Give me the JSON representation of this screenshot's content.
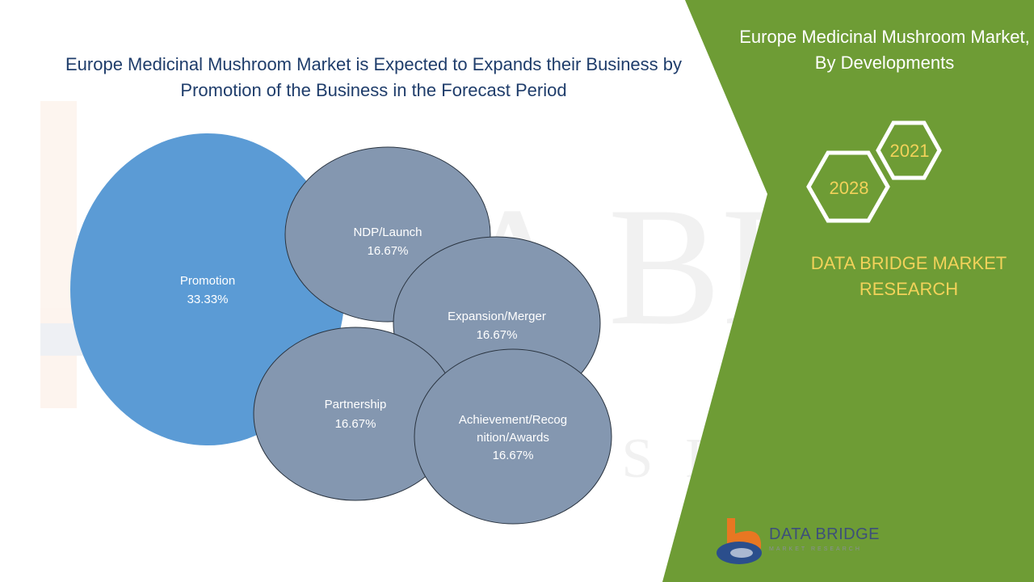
{
  "title": "Europe Medicinal Mushroom Market is Expected to Expands their Business by Promotion of the Business in the Forecast Period",
  "side_panel": {
    "title": "Europe Medicinal Mushroom Market, By Developments",
    "year_start": "2021",
    "year_end": "2028",
    "brand": "DATA BRIDGE MARKET RESEARCH"
  },
  "logo": {
    "name": "DATA BRIDGE",
    "tagline": "MARKET RESEARCH"
  },
  "colors": {
    "green_panel": "#6e9c35",
    "primary_bubble": "#5b9bd5",
    "secondary_bubble": "#8497b0",
    "title_text": "#1f3d6b",
    "accent_yellow": "#f2d25a"
  },
  "chart_data": {
    "type": "bubble",
    "series": [
      {
        "label": "Promotion",
        "value": 33.33,
        "display": "33.33%"
      },
      {
        "label": "NDP/Launch",
        "value": 16.67,
        "display": "16.67%"
      },
      {
        "label": "Expansion/Merger",
        "value": 16.67,
        "display": "16.67%"
      },
      {
        "label": "Partnership",
        "value": 16.67,
        "display": "16.67%"
      },
      {
        "label": "Achievement/Recognition/Awards",
        "value": 16.67,
        "display": "16.67%"
      }
    ]
  }
}
